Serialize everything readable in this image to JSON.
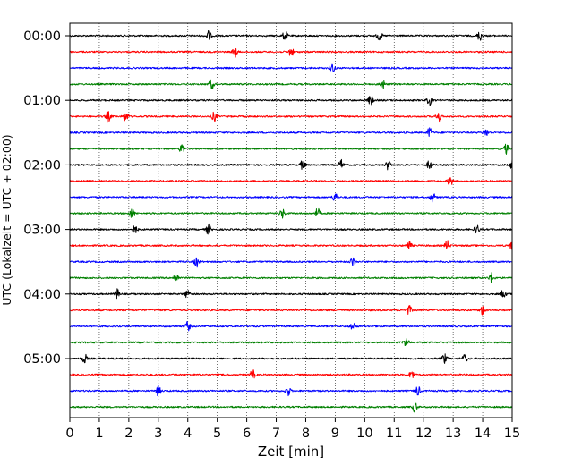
{
  "chart_data": {
    "type": "line",
    "xlabel": "Zeit  [min]",
    "ylabel": "UTC (Lokalzeit = UTC + 02:00)",
    "xlim": [
      0,
      15
    ],
    "x_ticks": [
      "0",
      "1",
      "2",
      "3",
      "4",
      "5",
      "6",
      "7",
      "8",
      "9",
      "10",
      "11",
      "12",
      "13",
      "14",
      "15"
    ],
    "y_tick_labels": [
      "00:00",
      "01:00",
      "02:00",
      "03:00",
      "04:00",
      "05:00"
    ],
    "rows_per_hour": 4,
    "trace_count": 24,
    "trace_minutes": 15,
    "start_time_utc": "00:00",
    "color_cycle": [
      "#000000",
      "#ff0000",
      "#0000ff",
      "#008000"
    ],
    "grid": "vertical dotted at each minute",
    "traces": [
      {
        "start": "00:00",
        "events_min": [
          4.7,
          7.3,
          10.5,
          13.9
        ]
      },
      {
        "start": "00:15",
        "events_min": [
          5.6,
          7.5
        ]
      },
      {
        "start": "00:30",
        "events_min": [
          8.9
        ]
      },
      {
        "start": "00:45",
        "events_min": [
          4.8,
          10.6
        ]
      },
      {
        "start": "01:00",
        "events_min": [
          10.2,
          12.2
        ]
      },
      {
        "start": "01:15",
        "events_min": [
          1.3,
          1.9,
          4.9,
          12.5
        ]
      },
      {
        "start": "01:30",
        "events_min": [
          12.2,
          14.1
        ]
      },
      {
        "start": "01:45",
        "events_min": [
          3.8,
          14.8
        ]
      },
      {
        "start": "02:00",
        "events_min": [
          7.9,
          9.2,
          10.8,
          12.2,
          15.0
        ]
      },
      {
        "start": "02:15",
        "events_min": [
          12.9
        ]
      },
      {
        "start": "02:30",
        "events_min": [
          9.0,
          12.3
        ]
      },
      {
        "start": "02:45",
        "events_min": [
          2.1,
          7.2,
          8.4
        ]
      },
      {
        "start": "03:00",
        "events_min": [
          2.2,
          4.7,
          13.8
        ]
      },
      {
        "start": "03:15",
        "events_min": [
          11.5,
          12.8,
          15.0
        ]
      },
      {
        "start": "03:30",
        "events_min": [
          4.3,
          9.6
        ]
      },
      {
        "start": "03:45",
        "events_min": [
          3.6,
          14.3
        ]
      },
      {
        "start": "04:00",
        "events_min": [
          1.6,
          4.0,
          14.7
        ]
      },
      {
        "start": "04:15",
        "events_min": [
          11.5,
          14.0
        ]
      },
      {
        "start": "04:30",
        "events_min": [
          4.0,
          9.6
        ]
      },
      {
        "start": "04:45",
        "events_min": [
          11.4
        ]
      },
      {
        "start": "05:00",
        "events_min": [
          0.5,
          12.7,
          13.4
        ]
      },
      {
        "start": "05:15",
        "events_min": [
          6.2,
          11.6
        ]
      },
      {
        "start": "05:30",
        "events_min": [
          3.0,
          7.4,
          11.8
        ]
      },
      {
        "start": "05:45",
        "events_min": [
          11.7
        ]
      }
    ]
  }
}
